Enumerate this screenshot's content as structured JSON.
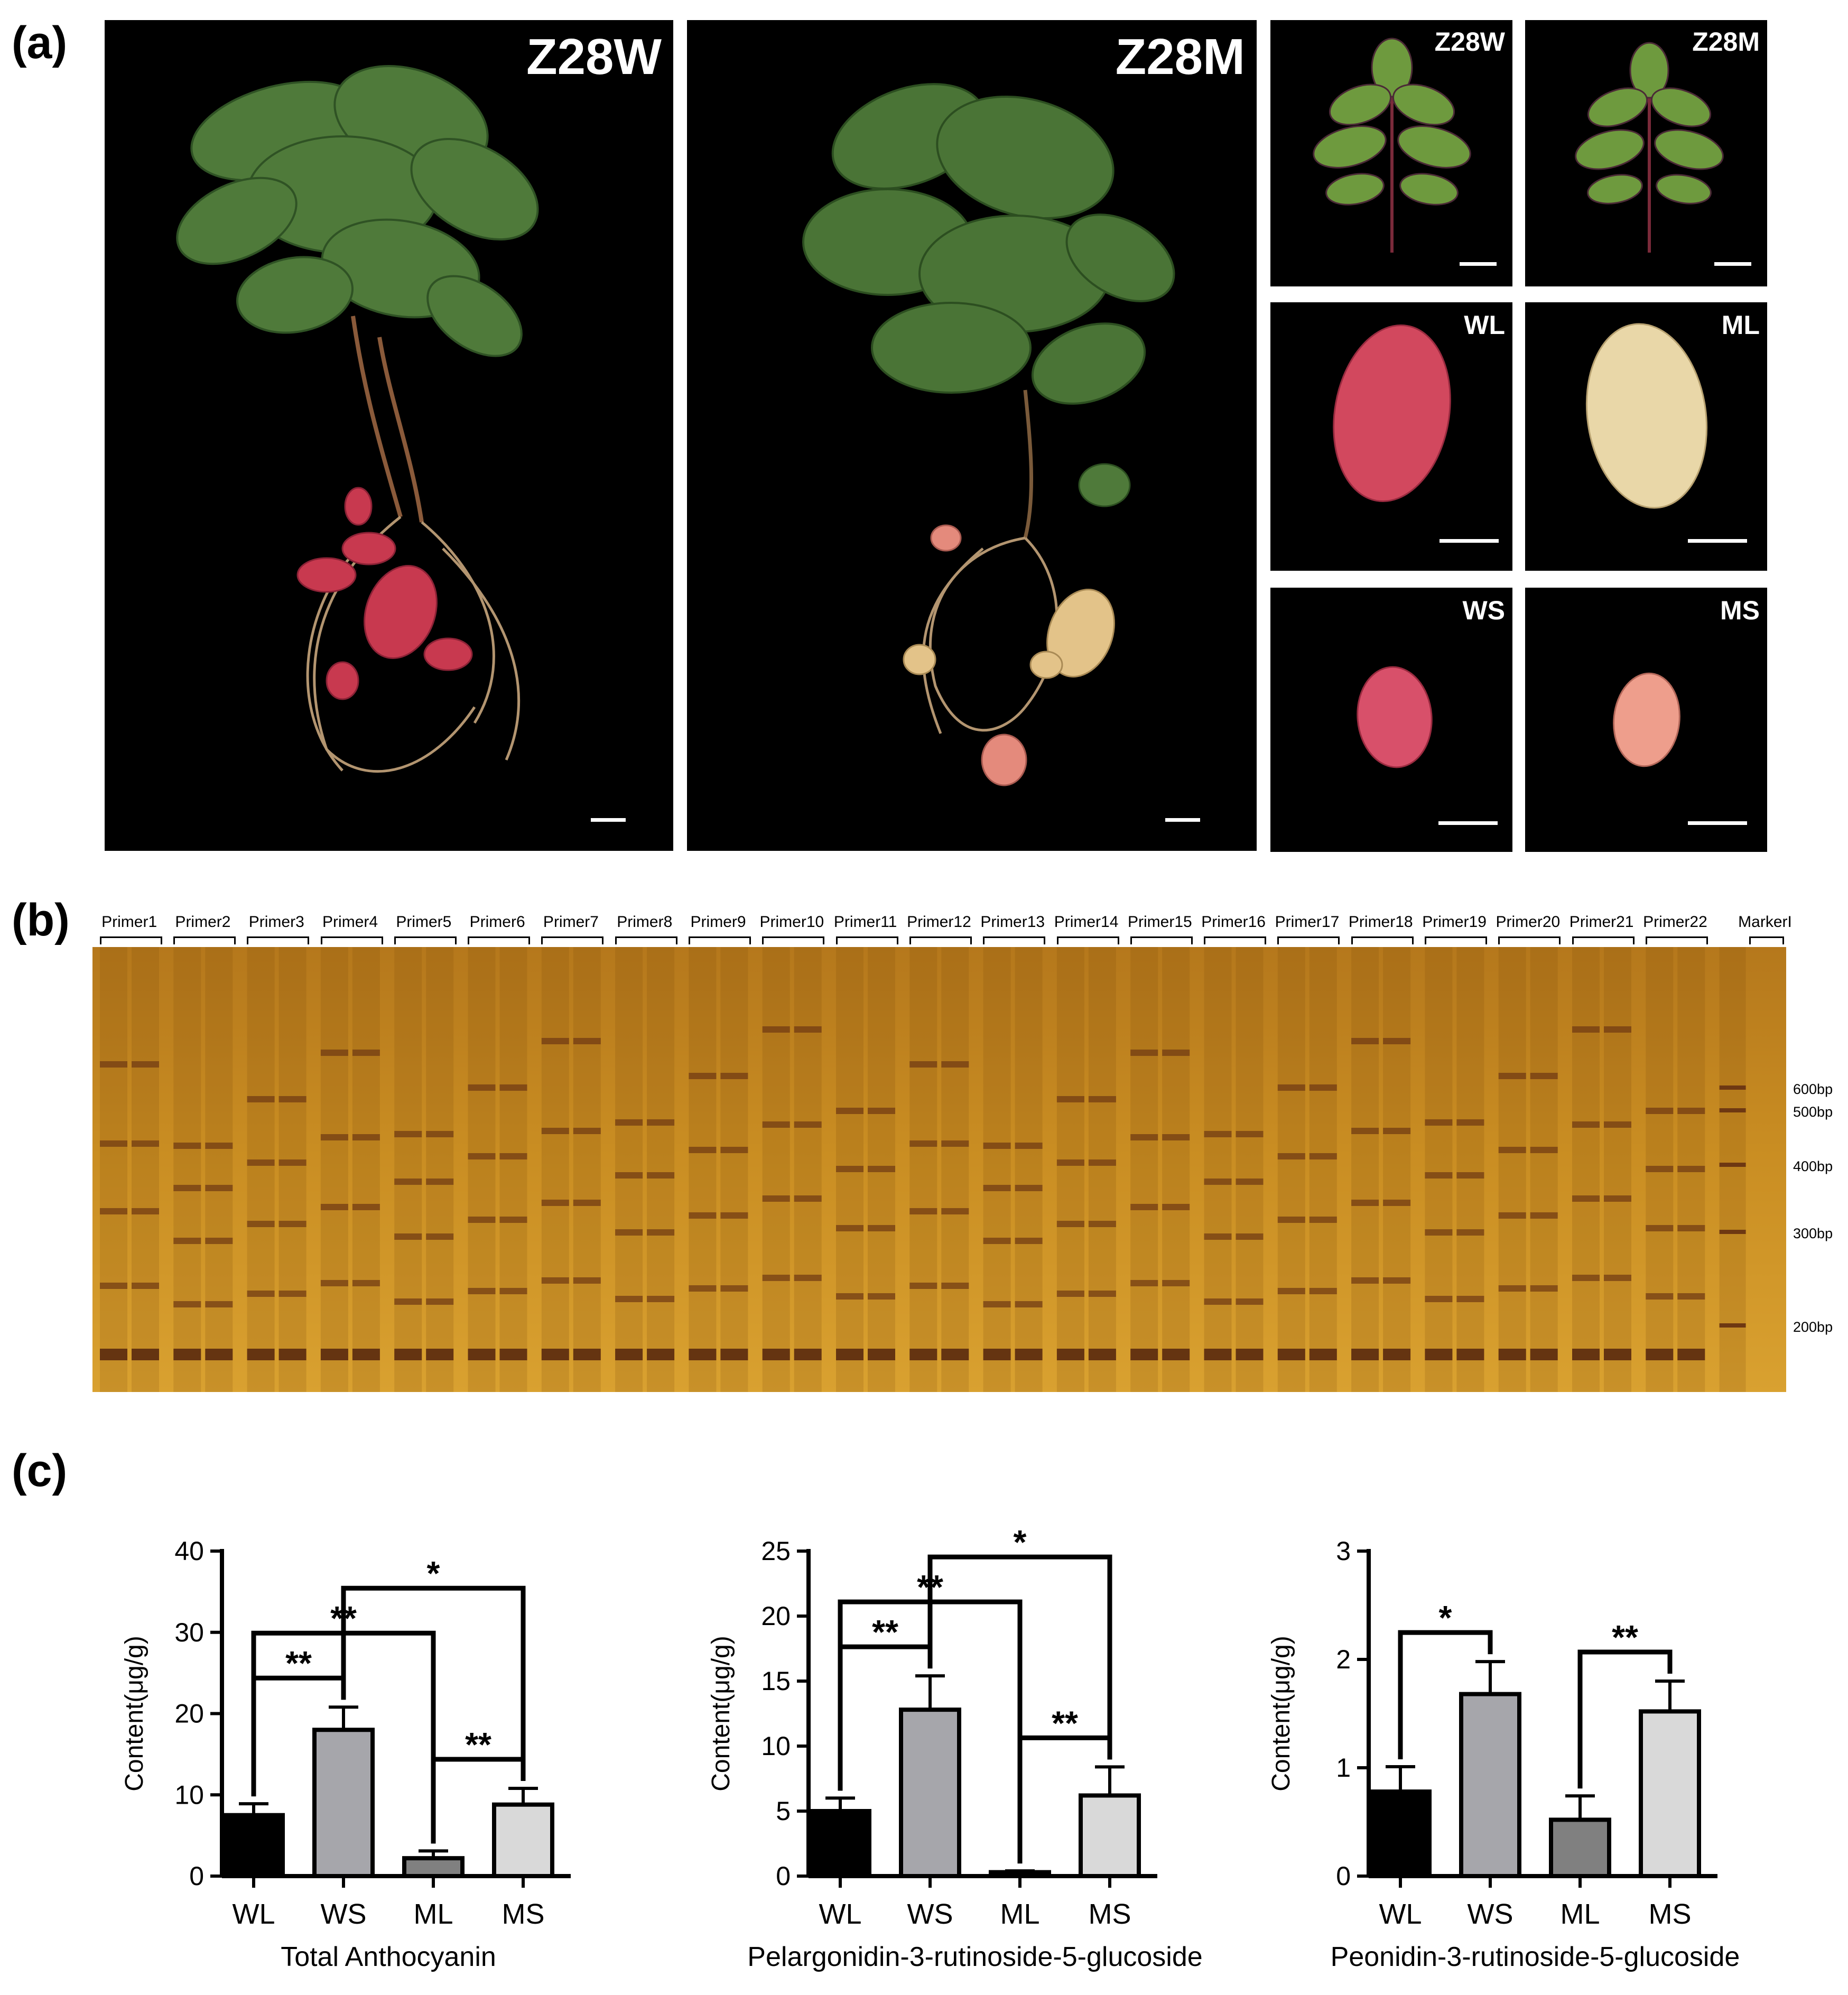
{
  "panel_labels": {
    "a": "(a)",
    "b": "(b)",
    "c": "(c)"
  },
  "panel_a": {
    "plant_photos": [
      "Z28W",
      "Z28M"
    ],
    "thumb_photos": [
      "Z28W",
      "Z28M",
      "WL",
      "ML",
      "WS",
      "MS"
    ]
  },
  "panel_b": {
    "primers": [
      "Primer1",
      "Primer2",
      "Primer3",
      "Primer4",
      "Primer5",
      "Primer6",
      "Primer7",
      "Primer8",
      "Primer9",
      "Primer10",
      "Primer11",
      "Primer12",
      "Primer13",
      "Primer14",
      "Primer15",
      "Primer16",
      "Primer17",
      "Primer18",
      "Primer19",
      "Primer20",
      "Primer21",
      "Primer22",
      "MarkerI"
    ],
    "marker_sizes": [
      "600bp",
      "500bp",
      "400bp",
      "300bp",
      "200bp"
    ]
  },
  "chart_data": [
    {
      "type": "bar",
      "title": "Total Anthocyanin",
      "ylabel": "Content(μg/g)",
      "categories": [
        "WL",
        "WS",
        "ML",
        "MS"
      ],
      "values": [
        7.5,
        18,
        2.2,
        8.8
      ],
      "errors": [
        1.4,
        2.8,
        0.9,
        2.0
      ],
      "colors": [
        "#000000",
        "#a6a6ab",
        "#808080",
        "#d9d9d9"
      ],
      "ylim": [
        0,
        40
      ],
      "yticks": [
        "0",
        "10",
        "20",
        "30",
        "40"
      ],
      "significance": [
        {
          "from": "WL",
          "to": "WS",
          "label": "**"
        },
        {
          "from": "WL",
          "to": "ML",
          "label": "**"
        },
        {
          "from": "WS",
          "to": "MS",
          "label": "*"
        },
        {
          "from": "ML",
          "to": "MS",
          "label": "**"
        }
      ]
    },
    {
      "type": "bar",
      "title": "Pelargonidin-3-rutinoside-5-glucoside",
      "ylabel": "Content(μg/g)",
      "categories": [
        "WL",
        "WS",
        "ML",
        "MS"
      ],
      "values": [
        5,
        12.8,
        0.3,
        6.2
      ],
      "errors": [
        1.0,
        2.6,
        0.1,
        2.2
      ],
      "colors": [
        "#000000",
        "#a6a6ab",
        "#808080",
        "#d9d9d9"
      ],
      "ylim": [
        0,
        25
      ],
      "yticks": [
        "0",
        "5",
        "10",
        "15",
        "20",
        "25"
      ],
      "significance": [
        {
          "from": "WL",
          "to": "WS",
          "label": "**"
        },
        {
          "from": "WL",
          "to": "ML",
          "label": "**"
        },
        {
          "from": "WS",
          "to": "MS",
          "label": "*"
        },
        {
          "from": "ML",
          "to": "MS",
          "label": "**"
        }
      ]
    },
    {
      "type": "bar",
      "title": "Peonidin-3-rutinoside-5-glucoside",
      "ylabel": "Content(μg/g)",
      "categories": [
        "WL",
        "WS",
        "ML",
        "MS"
      ],
      "values": [
        0.78,
        1.68,
        0.52,
        1.52
      ],
      "errors": [
        0.23,
        0.3,
        0.22,
        0.28
      ],
      "colors": [
        "#000000",
        "#a6a6ab",
        "#808080",
        "#d9d9d9"
      ],
      "ylim": [
        0,
        3
      ],
      "yticks": [
        "0",
        "1",
        "2",
        "3"
      ],
      "significance": [
        {
          "from": "WL",
          "to": "WS",
          "label": "*"
        },
        {
          "from": "ML",
          "to": "MS",
          "label": "**"
        }
      ]
    }
  ]
}
